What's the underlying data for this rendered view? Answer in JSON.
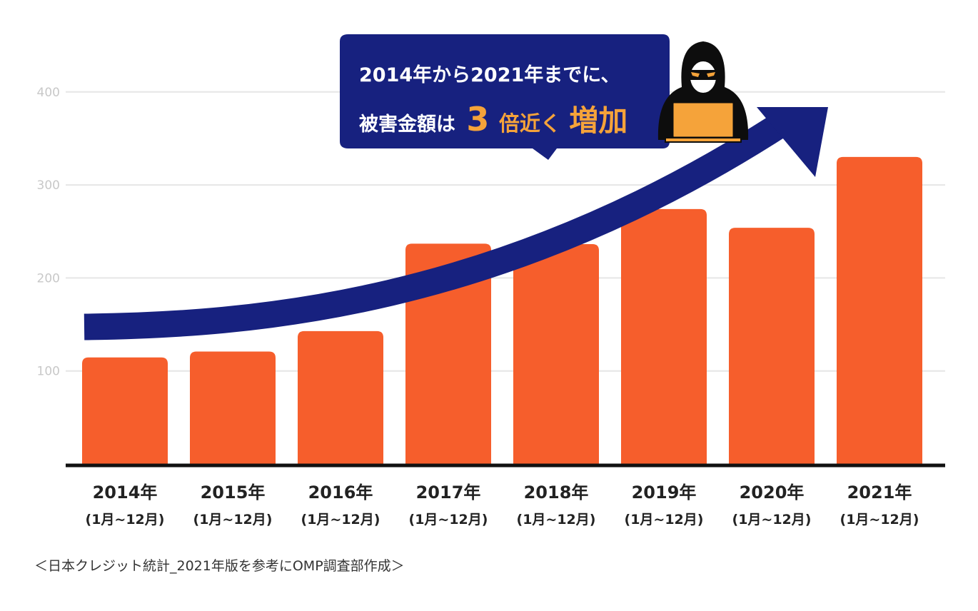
{
  "chart_data": {
    "type": "bar",
    "categories": [
      "2014年",
      "2015年",
      "2016年",
      "2017年",
      "2018年",
      "2019年",
      "2020年",
      "2021年"
    ],
    "category_sublabels": [
      "(1月~12月)",
      "(1月~12月)",
      "(1月~12月)",
      "(1月~12月)",
      "(1月~12月)",
      "(1月~12月)",
      "(1月~12月)",
      "(1月~12月)"
    ],
    "values": [
      114.5,
      120.9,
      142.8,
      236.9,
      236.4,
      274.1,
      253.9,
      330.1
    ],
    "yticks": [
      100,
      200,
      300,
      400
    ],
    "ylim": [
      0,
      400
    ],
    "grid": true,
    "bar_color": "#f65e2c",
    "arrow_color": "#17217f",
    "callout": {
      "line1": "2014年から2021年までに、",
      "line2_prefix": "被害金額は",
      "line2_number": "3",
      "line2_mid": "倍近く",
      "line2_emphasis": "増加",
      "bg_color": "#17217f",
      "highlight_color": "#f5a33a"
    }
  },
  "hacker_icon": "hacker-with-laptop-icon",
  "source_note": "＜日本クレジット統計_2021年版を参考にOMP調査部作成＞"
}
